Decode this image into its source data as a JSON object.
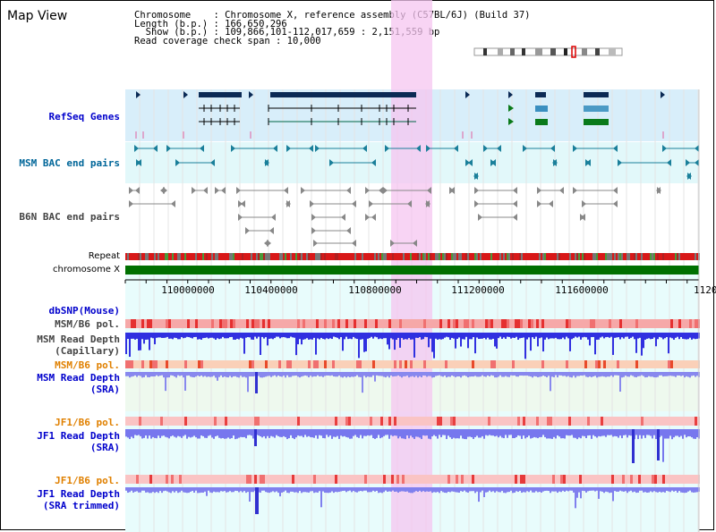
{
  "app_title": "Map View",
  "info": {
    "chromosome": "Chromosome    : Chromosome X, reference assembly (C57BL/6J) (Build 37)",
    "length": "Length (b.p.) : 166,650,296",
    "show": "  Show (b.p.) : 109,866,101-112,017,659 : 2,151,559 bp",
    "coverage": "Read coverage check span : 10,000"
  },
  "labels": {
    "refseq": "RefSeq Genes",
    "msm_bac": "MSM BAC end pairs",
    "b6n_bac": "B6N BAC end pairs",
    "repeat": "Repeat",
    "chromosome": "chromosome X",
    "dbsnp": "dbSNP(Mouse)",
    "msm_pol_1": "MSM/B6 pol.",
    "msm_depth_cap_1": "MSM Read Depth",
    "msm_depth_cap_2": "(Capillary)",
    "msm_pol_2": "MSM/B6 pol.",
    "msm_depth_sra_1": "MSM Read Depth",
    "msm_depth_sra_2": "(SRA)",
    "jf1_pol_1": "JF1/B6 pol.",
    "jf1_depth_1": "JF1 Read Depth",
    "jf1_depth_2": "(SRA)",
    "jf1_pol_2": "JF1/B6 pol.",
    "jf1_trim_1": "JF1 Read Depth",
    "jf1_trim_2": "(SRA trimmed)"
  },
  "ruler": {
    "ticks": [
      "110000000",
      "110400000",
      "110800000",
      "111200000",
      "111600000",
      "1120"
    ]
  },
  "colors": {
    "label_blue": "#0000cc",
    "label_teal": "#006699",
    "label_gray": "#444444",
    "label_orange": "#e08000",
    "highlight": "#f5c6f0",
    "refseq_bg": "#d8eefa",
    "msm_bac_bg": "#e2f8fa",
    "chrom_green": "#007000"
  }
}
